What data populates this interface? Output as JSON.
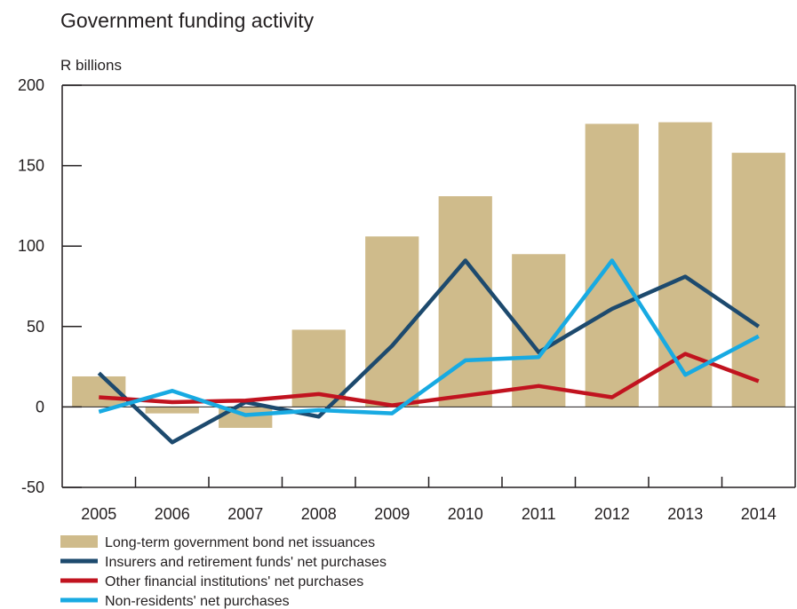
{
  "chart_data": {
    "type": "bar",
    "title": "Government funding activity",
    "ylabel": "R billions",
    "xlabel": "",
    "ylim": [
      -50,
      200
    ],
    "yticks": [
      -50,
      0,
      50,
      100,
      150,
      200
    ],
    "categories": [
      "2005",
      "2006",
      "2007",
      "2008",
      "2009",
      "2010",
      "2011",
      "2012",
      "2013",
      "2014"
    ],
    "grid": false,
    "legend_position": "bottom",
    "series": [
      {
        "name": "Long-term government bond net issuances",
        "type": "bar",
        "color": "#cfbb8b",
        "values": [
          19,
          -4,
          -13,
          48,
          106,
          131,
          95,
          176,
          177,
          158
        ]
      },
      {
        "name": "Insurers and retirement funds' net purchases",
        "type": "line",
        "color": "#1d4a6e",
        "values": [
          21,
          -22,
          3,
          -6,
          38,
          91,
          34,
          61,
          81,
          50
        ]
      },
      {
        "name": "Other financial institutions' net purchases",
        "type": "line",
        "color": "#c1131f",
        "values": [
          6,
          3,
          4,
          8,
          1,
          7,
          13,
          6,
          33,
          16
        ]
      },
      {
        "name": "Non-residents' net purchases",
        "type": "line",
        "color": "#18aae2",
        "values": [
          -3,
          10,
          -5,
          -2,
          -4,
          29,
          31,
          91,
          20,
          44
        ]
      }
    ]
  }
}
